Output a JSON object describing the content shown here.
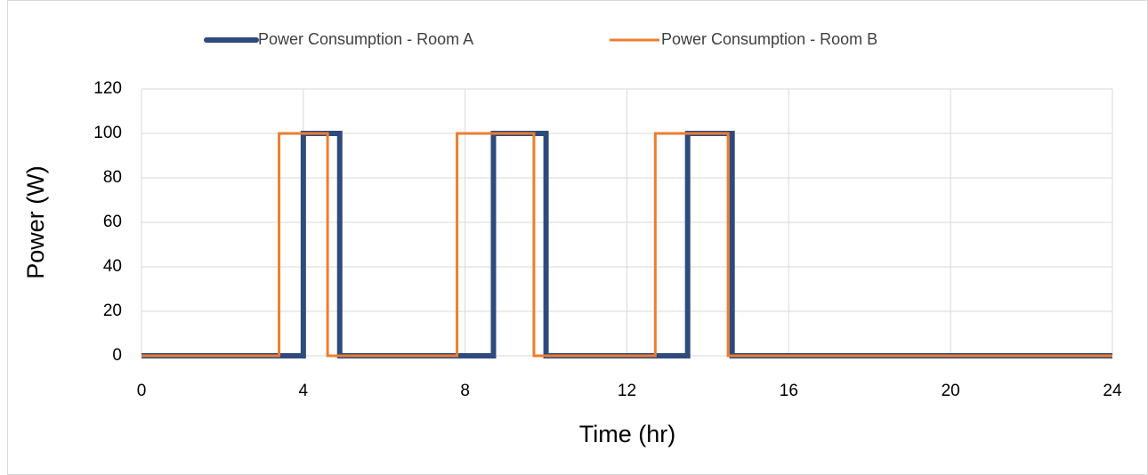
{
  "chart_data": {
    "type": "line",
    "xlabel": "Time (hr)",
    "ylabel": "Power (W)",
    "xlim": [
      0,
      24
    ],
    "xticks": [
      0,
      4,
      8,
      12,
      16,
      20,
      24
    ],
    "ylim": [
      0,
      120
    ],
    "yticks": [
      0,
      20,
      40,
      60,
      80,
      100,
      120
    ],
    "grid": true,
    "legend": "top",
    "series": [
      {
        "name": "Power Consumption - Room A",
        "color": "#2f4a7c",
        "width": 6,
        "x": [
          0,
          4,
          4,
          4.9,
          4.9,
          8.7,
          8.7,
          10,
          10,
          13.5,
          13.5,
          14.6,
          14.6,
          24
        ],
        "values": [
          0,
          0,
          100,
          100,
          0,
          0,
          100,
          100,
          0,
          0,
          100,
          100,
          0,
          0
        ]
      },
      {
        "name": "Power Consumption - Room B",
        "color": "#ed7d31",
        "width": 3,
        "x": [
          0,
          3.4,
          3.4,
          4.6,
          4.6,
          7.8,
          7.8,
          9.7,
          9.7,
          12.7,
          12.7,
          14.5,
          14.5,
          24
        ],
        "values": [
          0,
          0,
          100,
          100,
          0,
          0,
          100,
          100,
          0,
          0,
          100,
          100,
          0,
          0
        ]
      }
    ]
  }
}
